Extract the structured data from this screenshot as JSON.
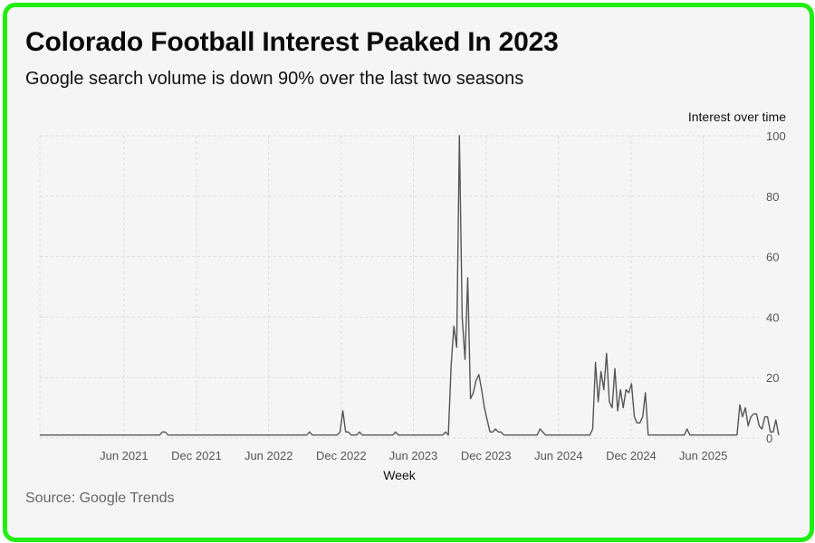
{
  "card": {
    "title": "Colorado Football Interest Peaked In 2023",
    "subtitle": "Google search volume is down 90% over the last two seasons",
    "source": "Source: Google Trends",
    "border_color": "#22ee11",
    "background": "#f5f5f5"
  },
  "chart_data": {
    "type": "line",
    "xlabel": "Week",
    "ylabel": "Interest over time",
    "ylim": [
      0,
      100
    ],
    "yticks": [
      0,
      20,
      40,
      60,
      80,
      100
    ],
    "x_range": [
      "2020-11-01",
      "2025-10-19"
    ],
    "xticks": [
      {
        "date": "2021-06-01",
        "label": "Jun 2021"
      },
      {
        "date": "2021-12-01",
        "label": "Dec 2021"
      },
      {
        "date": "2022-06-01",
        "label": "Jun 2022"
      },
      {
        "date": "2022-12-01",
        "label": "Dec 2022"
      },
      {
        "date": "2023-06-01",
        "label": "Jun 2023"
      },
      {
        "date": "2023-12-01",
        "label": "Dec 2023"
      },
      {
        "date": "2024-06-01",
        "label": "Jun 2024"
      },
      {
        "date": "2024-12-01",
        "label": "Dec 2024"
      },
      {
        "date": "2025-06-01",
        "label": "Jun 2025"
      }
    ],
    "grid": true,
    "line_color": "#555555",
    "series": [
      {
        "name": "",
        "points": [
          [
            "2020-11-01",
            1
          ],
          [
            "2021-08-30",
            1
          ],
          [
            "2021-09-06",
            2
          ],
          [
            "2021-09-13",
            2
          ],
          [
            "2021-09-20",
            1
          ],
          [
            "2022-09-05",
            1
          ],
          [
            "2022-09-12",
            2
          ],
          [
            "2022-09-19",
            1
          ],
          [
            "2022-11-21",
            1
          ],
          [
            "2022-11-28",
            2
          ],
          [
            "2022-12-05",
            9
          ],
          [
            "2022-12-12",
            2
          ],
          [
            "2022-12-19",
            2
          ],
          [
            "2022-12-26",
            1
          ],
          [
            "2023-01-09",
            1
          ],
          [
            "2023-01-16",
            2
          ],
          [
            "2023-01-23",
            1
          ],
          [
            "2023-04-10",
            1
          ],
          [
            "2023-04-17",
            2
          ],
          [
            "2023-04-24",
            1
          ],
          [
            "2023-08-14",
            1
          ],
          [
            "2023-08-21",
            2
          ],
          [
            "2023-08-28",
            1
          ],
          [
            "2023-09-04",
            24
          ],
          [
            "2023-09-11",
            37
          ],
          [
            "2023-09-18",
            30
          ],
          [
            "2023-09-25",
            100
          ],
          [
            "2023-10-02",
            40
          ],
          [
            "2023-10-09",
            26
          ],
          [
            "2023-10-16",
            53
          ],
          [
            "2023-10-23",
            13
          ],
          [
            "2023-10-30",
            15
          ],
          [
            "2023-11-06",
            19
          ],
          [
            "2023-11-13",
            21
          ],
          [
            "2023-11-20",
            16
          ],
          [
            "2023-11-27",
            10
          ],
          [
            "2023-12-04",
            6
          ],
          [
            "2023-12-11",
            2
          ],
          [
            "2023-12-18",
            2
          ],
          [
            "2023-12-25",
            3
          ],
          [
            "2024-01-01",
            2
          ],
          [
            "2024-01-08",
            2
          ],
          [
            "2024-01-15",
            1
          ],
          [
            "2024-04-08",
            1
          ],
          [
            "2024-04-15",
            3
          ],
          [
            "2024-04-22",
            2
          ],
          [
            "2024-04-29",
            1
          ],
          [
            "2024-08-19",
            1
          ],
          [
            "2024-08-26",
            3
          ],
          [
            "2024-09-02",
            25
          ],
          [
            "2024-09-09",
            12
          ],
          [
            "2024-09-16",
            22
          ],
          [
            "2024-09-23",
            16
          ],
          [
            "2024-09-30",
            28
          ],
          [
            "2024-10-07",
            12
          ],
          [
            "2024-10-14",
            10
          ],
          [
            "2024-10-21",
            23
          ],
          [
            "2024-10-28",
            9
          ],
          [
            "2024-11-04",
            16
          ],
          [
            "2024-11-11",
            10
          ],
          [
            "2024-11-18",
            16
          ],
          [
            "2024-11-25",
            15
          ],
          [
            "2024-12-02",
            18
          ],
          [
            "2024-12-09",
            7
          ],
          [
            "2024-12-16",
            5
          ],
          [
            "2024-12-23",
            5
          ],
          [
            "2024-12-30",
            7
          ],
          [
            "2025-01-06",
            15
          ],
          [
            "2025-01-13",
            1
          ],
          [
            "2025-04-14",
            1
          ],
          [
            "2025-04-21",
            3
          ],
          [
            "2025-04-28",
            1
          ],
          [
            "2025-08-25",
            1
          ],
          [
            "2025-09-01",
            11
          ],
          [
            "2025-09-08",
            7
          ],
          [
            "2025-09-15",
            10
          ],
          [
            "2025-09-22",
            4
          ],
          [
            "2025-09-29",
            7
          ],
          [
            "2025-10-06",
            8
          ],
          [
            "2025-10-13",
            8
          ],
          [
            "2025-10-20",
            4
          ],
          [
            "2025-10-27",
            3
          ],
          [
            "2025-11-03",
            7
          ],
          [
            "2025-11-10",
            7
          ],
          [
            "2025-11-17",
            2
          ],
          [
            "2025-11-24",
            2
          ],
          [
            "2025-12-01",
            6
          ],
          [
            "2025-12-08",
            1
          ]
        ]
      }
    ]
  }
}
